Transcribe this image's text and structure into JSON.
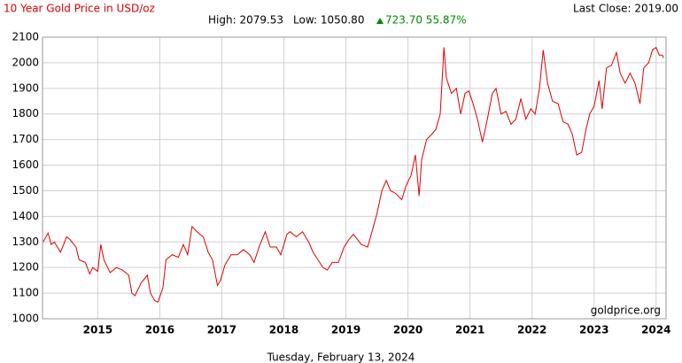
{
  "chart_data": {
    "type": "line",
    "title": "10 Year Gold Price in USD/oz",
    "last_close": "Last Close: 2019.00",
    "high": "High: 2079.53",
    "low": "Low: 1050.80",
    "change": "723.70 55.87%",
    "watermark": "goldprice.org",
    "date_label": "Tuesday, February 13, 2024",
    "color": "#e00000",
    "grid": true,
    "xlim": [
      2014.11,
      2024.16
    ],
    "xticks": [
      2015,
      2016,
      2017,
      2018,
      2019,
      2020,
      2021,
      2022,
      2023,
      2024
    ],
    "ylim": [
      1000,
      2100
    ],
    "yticks": [
      1000,
      1100,
      1200,
      1300,
      1400,
      1500,
      1600,
      1700,
      1800,
      1900,
      2000,
      2100
    ],
    "x": [
      2014.12,
      2014.2,
      2014.25,
      2014.3,
      2014.4,
      2014.5,
      2014.55,
      2014.65,
      2014.7,
      2014.8,
      2014.87,
      2014.92,
      2015.0,
      2015.05,
      2015.1,
      2015.2,
      2015.3,
      2015.4,
      2015.5,
      2015.55,
      2015.6,
      2015.7,
      2015.8,
      2015.85,
      2015.92,
      2015.97,
      2016.05,
      2016.1,
      2016.2,
      2016.3,
      2016.38,
      2016.45,
      2016.52,
      2016.6,
      2016.7,
      2016.78,
      2016.85,
      2016.93,
      2016.98,
      2017.05,
      2017.15,
      2017.25,
      2017.35,
      2017.45,
      2017.52,
      2017.6,
      2017.7,
      2017.78,
      2017.88,
      2017.95,
      2018.05,
      2018.1,
      2018.2,
      2018.3,
      2018.4,
      2018.47,
      2018.55,
      2018.63,
      2018.7,
      2018.78,
      2018.88,
      2018.97,
      2019.05,
      2019.12,
      2019.25,
      2019.35,
      2019.42,
      2019.5,
      2019.58,
      2019.65,
      2019.72,
      2019.8,
      2019.9,
      2019.97,
      2020.05,
      2020.12,
      2020.18,
      2020.22,
      2020.3,
      2020.38,
      2020.45,
      2020.52,
      2020.58,
      2020.62,
      2020.7,
      2020.78,
      2020.85,
      2020.92,
      2020.98,
      2021.05,
      2021.12,
      2021.2,
      2021.28,
      2021.36,
      2021.42,
      2021.5,
      2021.58,
      2021.66,
      2021.74,
      2021.82,
      2021.9,
      2021.98,
      2022.05,
      2022.12,
      2022.18,
      2022.25,
      2022.33,
      2022.42,
      2022.5,
      2022.58,
      2022.65,
      2022.72,
      2022.8,
      2022.87,
      2022.93,
      2023.0,
      2023.08,
      2023.13,
      2023.2,
      2023.28,
      2023.36,
      2023.42,
      2023.5,
      2023.58,
      2023.66,
      2023.74,
      2023.8,
      2023.88,
      2023.94,
      2024.0,
      2024.05,
      2024.1,
      2024.12
    ],
    "values": [
      1300,
      1335,
      1290,
      1300,
      1260,
      1320,
      1310,
      1280,
      1230,
      1220,
      1175,
      1200,
      1185,
      1290,
      1230,
      1180,
      1200,
      1190,
      1170,
      1100,
      1090,
      1140,
      1170,
      1100,
      1070,
      1065,
      1120,
      1230,
      1250,
      1240,
      1290,
      1250,
      1360,
      1340,
      1320,
      1260,
      1230,
      1130,
      1150,
      1210,
      1250,
      1250,
      1270,
      1250,
      1220,
      1280,
      1340,
      1280,
      1280,
      1250,
      1330,
      1340,
      1320,
      1340,
      1300,
      1260,
      1230,
      1200,
      1190,
      1220,
      1220,
      1280,
      1310,
      1330,
      1290,
      1280,
      1340,
      1410,
      1500,
      1540,
      1500,
      1490,
      1465,
      1520,
      1560,
      1640,
      1480,
      1620,
      1700,
      1720,
      1740,
      1800,
      2060,
      1940,
      1880,
      1900,
      1800,
      1880,
      1890,
      1840,
      1780,
      1690,
      1780,
      1880,
      1900,
      1800,
      1810,
      1760,
      1780,
      1860,
      1780,
      1820,
      1800,
      1900,
      2050,
      1920,
      1850,
      1840,
      1770,
      1760,
      1720,
      1640,
      1650,
      1740,
      1800,
      1830,
      1930,
      1820,
      1980,
      1990,
      2040,
      1960,
      1920,
      1960,
      1920,
      1840,
      1980,
      2000,
      2050,
      2060,
      2030,
      2030,
      2019
    ]
  }
}
